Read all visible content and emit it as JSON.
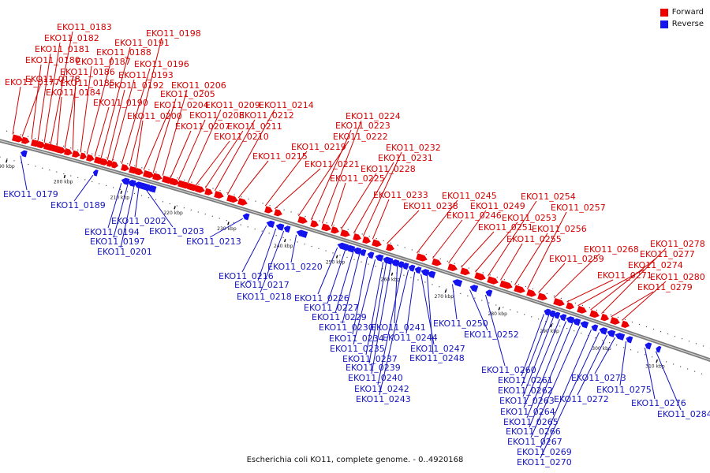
{
  "legend": {
    "forward": {
      "label": "Forward",
      "color": "#ee0000"
    },
    "reverse": {
      "label": "Reverse",
      "color": "#1414ee"
    }
  },
  "caption": "Escherichia coli KO11, complete genome. - 0..4920168",
  "ticks": [
    "190 kbp",
    "200 kbp",
    "210 kbp",
    "220 kbp",
    "230 kbp",
    "240 kbp",
    "250 kbp",
    "260 kbp",
    "270 kbp",
    "280 kbp",
    "290 kbp",
    "300 kbp",
    "310 kbp"
  ],
  "forward_genes": [
    "EKO11_0177",
    "EKO11_0178",
    "EKO11_0180",
    "EKO11_0181",
    "EKO11_0182",
    "EKO11_0183",
    "EKO11_0184",
    "EKO11_0185",
    "EKO11_0186",
    "EKO11_0187",
    "EKO11_0188",
    "EKO11_0190",
    "EKO11_0191",
    "EKO11_0192",
    "EKO11_0193",
    "EKO11_0196",
    "EKO11_0198",
    "EKO11_0200",
    "EKO11_0204",
    "EKO11_0205",
    "EKO11_0206",
    "EKO11_0207",
    "EKO11_0208",
    "EKO11_0209",
    "EKO11_0210",
    "EKO11_0211",
    "EKO11_0212",
    "EKO11_0214",
    "EKO11_0215",
    "EKO11_0219",
    "EKO11_0221",
    "EKO11_0222",
    "EKO11_0223",
    "EKO11_0224",
    "EKO11_0225",
    "EKO11_0228",
    "EKO11_0231",
    "EKO11_0232",
    "EKO11_0233",
    "EKO11_0238",
    "EKO11_0245",
    "EKO11_0246",
    "EKO11_0249",
    "EKO11_0251",
    "EKO11_0253",
    "EKO11_0254",
    "EKO11_0255",
    "EKO11_0256",
    "EKO11_0257",
    "EKO11_0259",
    "EKO11_0268",
    "EKO11_0271",
    "EKO11_0274",
    "EKO11_0277",
    "EKO11_0278",
    "EKO11_0279",
    "EKO11_0280"
  ],
  "reverse_genes": [
    "EKO11_0179",
    "EKO11_0189",
    "EKO11_0194",
    "EKO11_0197",
    "EKO11_0201",
    "EKO11_0202",
    "EKO11_0203",
    "EKO11_0213",
    "EKO11_0216",
    "EKO11_0217",
    "EKO11_0218",
    "EKO11_0220",
    "EKO11_0226",
    "EKO11_0227",
    "EKO11_0229",
    "EKO11_0230",
    "EKO11_0234",
    "EKO11_0235",
    "EKO11_0237",
    "EKO11_0239",
    "EKO11_0240",
    "EKO11_0241",
    "EKO11_0242",
    "EKO11_0243",
    "EKO11_0244",
    "EKO11_0247",
    "EKO11_0248",
    "EKO11_0250",
    "EKO11_0252",
    "EKO11_0260",
    "EKO11_0261",
    "EKO11_0262",
    "EKO11_0263",
    "EKO11_0264",
    "EKO11_0265",
    "EKO11_0266",
    "EKO11_0267",
    "EKO11_0269",
    "EKO11_0270",
    "EKO11_0272",
    "EKO11_0273",
    "EKO11_0275",
    "EKO11_0276",
    "EKO11_0284"
  ]
}
